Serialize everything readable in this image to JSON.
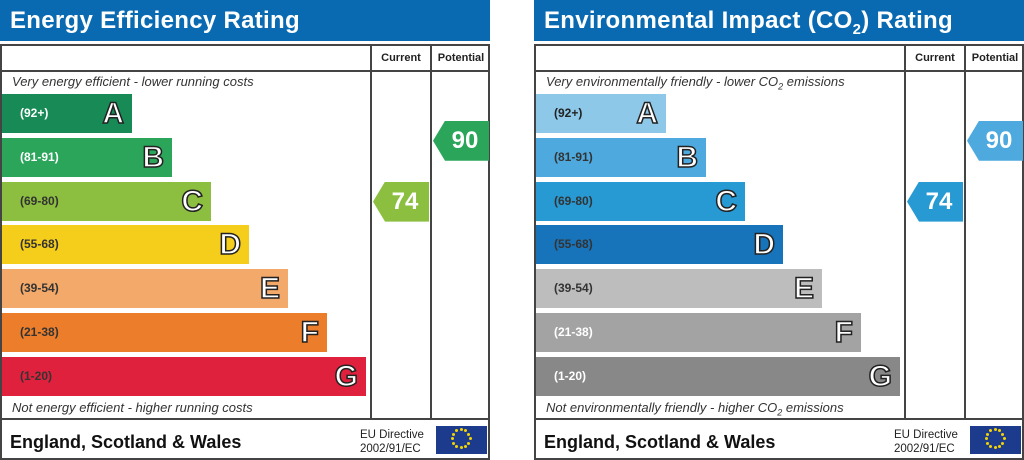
{
  "chart_data": [
    {
      "type": "bar",
      "title": "Energy Efficiency Rating",
      "columns": [
        "Current",
        "Potential"
      ],
      "top_note": "Very energy efficient - lower running costs",
      "bottom_note": "Not energy efficient - higher running costs",
      "bands": [
        {
          "letter": "A",
          "range": "(92+)",
          "color": "#178a56",
          "text": "#fff"
        },
        {
          "letter": "B",
          "range": "(81-91)",
          "color": "#2aa55a",
          "text": "#fff"
        },
        {
          "letter": "C",
          "range": "(69-80)",
          "color": "#8cbf3f",
          "text": "#333"
        },
        {
          "letter": "D",
          "range": "(55-68)",
          "color": "#f5cd1b",
          "text": "#333"
        },
        {
          "letter": "E",
          "range": "(39-54)",
          "color": "#f2a96a",
          "text": "#333"
        },
        {
          "letter": "F",
          "range": "(21-38)",
          "color": "#ec7d2a",
          "text": "#333"
        },
        {
          "letter": "G",
          "range": "(1-20)",
          "color": "#e0213d",
          "text": "#333"
        }
      ],
      "current": {
        "value": "74",
        "band": "C",
        "color": "#8cbf3f"
      },
      "potential": {
        "value": "90",
        "band": "B",
        "color": "#2aa55a"
      },
      "footer": "England, Scotland & Wales",
      "directive": [
        "EU Directive",
        "2002/91/EC"
      ]
    },
    {
      "type": "bar",
      "title": "Environmental Impact (CO",
      "title_sub": "2",
      "title_end": ") Rating",
      "columns": [
        "Current",
        "Potential"
      ],
      "top_note": "Very environmentally friendly - lower CO",
      "top_note_sub": "2",
      "top_note_end": " emissions",
      "bottom_note": "Not environmentally friendly - higher CO",
      "bottom_note_sub": "2",
      "bottom_note_end": " emissions",
      "bands": [
        {
          "letter": "A",
          "range": "(92+)",
          "color": "#8ec8e9",
          "text": "#222"
        },
        {
          "letter": "B",
          "range": "(81-91)",
          "color": "#4da9de",
          "text": "#333"
        },
        {
          "letter": "C",
          "range": "(69-80)",
          "color": "#279ad4",
          "text": "#333"
        },
        {
          "letter": "D",
          "range": "(55-68)",
          "color": "#1874ba",
          "text": "#333"
        },
        {
          "letter": "E",
          "range": "(39-54)",
          "color": "#bdbdbd",
          "text": "#333"
        },
        {
          "letter": "F",
          "range": "(21-38)",
          "color": "#a3a3a3",
          "text": "#fff"
        },
        {
          "letter": "G",
          "range": "(1-20)",
          "color": "#888888",
          "text": "#fff"
        }
      ],
      "current": {
        "value": "74",
        "band": "C",
        "color": "#279ad4"
      },
      "potential": {
        "value": "90",
        "band": "B",
        "color": "#4da9de"
      },
      "footer": "England, Scotland & Wales",
      "directive": [
        "EU Directive",
        "2002/91/EC"
      ]
    }
  ]
}
